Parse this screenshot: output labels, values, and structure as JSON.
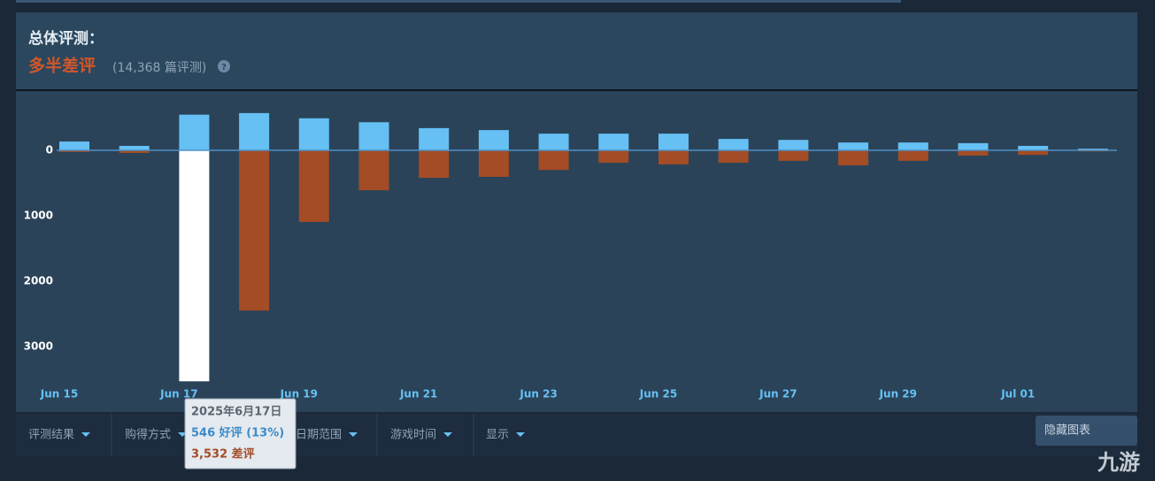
{
  "header": {
    "title": "总体评测：",
    "summary": "多半差评",
    "count": "(14,368 篇评测)",
    "help": "?"
  },
  "chart_data": {
    "type": "diverging-bar",
    "categories": [
      "Jun 15",
      null,
      "Jun 17",
      null,
      "Jun 19",
      null,
      "Jun 21",
      null,
      "Jun 23",
      null,
      "Jun 25",
      null,
      "Jun 27",
      null,
      "Jun 29",
      null,
      "Jul 01",
      null
    ],
    "series": [
      {
        "color": "#66c0f4",
        "direction": "up",
        "values": [
          135,
          68,
          546,
          570,
          490,
          430,
          340,
          310,
          255,
          255,
          255,
          175,
          160,
          120,
          120,
          110,
          68,
          25
        ]
      },
      {
        "color": "#a34c25",
        "direction": "down",
        "values": [
          25,
          40,
          3532,
          2450,
          1095,
          610,
          420,
          405,
          300,
          190,
          215,
          190,
          160,
          230,
          160,
          80,
          70,
          15
        ]
      }
    ],
    "ylim": [
      -920,
      3650
    ],
    "yticks": [
      0,
      1000,
      2000,
      3000
    ],
    "highlight": 2,
    "highlight_color": "#ffffff"
  },
  "tooltip": {
    "title": "2025年6月17日",
    "lines": [
      "546 好评 (13%)",
      "3,532 差评"
    ]
  },
  "filters": [
    "评测结果",
    "购得方式",
    "日期范围",
    "游戏时间",
    "显示"
  ],
  "hide_button": "隐藏图表",
  "watermark": "九游"
}
